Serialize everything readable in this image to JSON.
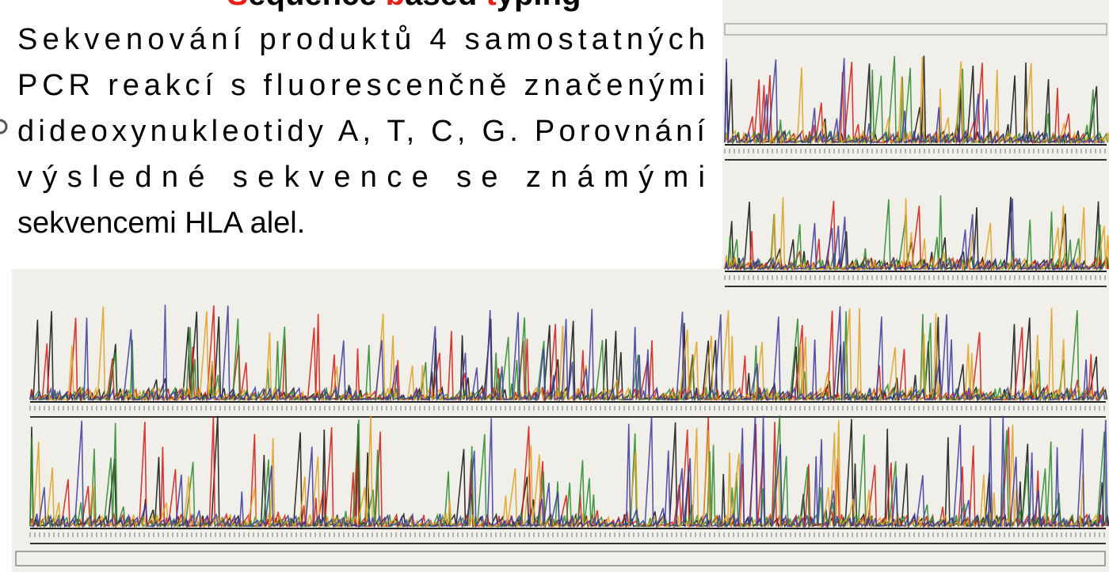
{
  "header": {
    "title_parts": [
      {
        "text": "S",
        "color": "#e8201a"
      },
      {
        "text": "equence ",
        "color": "#000000"
      },
      {
        "text": "b",
        "color": "#e8201a"
      },
      {
        "text": "ased ",
        "color": "#000000"
      },
      {
        "text": "t",
        "color": "#e8201a"
      },
      {
        "text": "yping",
        "color": "#000000"
      }
    ]
  },
  "body": {
    "lines": [
      "Sekvenování produktů 4 samostatných",
      "PCR reakcí s fluorescenčně značenými",
      "dideoxynukleotidy A, T, C, G. Porovnání",
      "výsledné sekvence se známými",
      "sekvencemi HLA alel."
    ]
  }
}
